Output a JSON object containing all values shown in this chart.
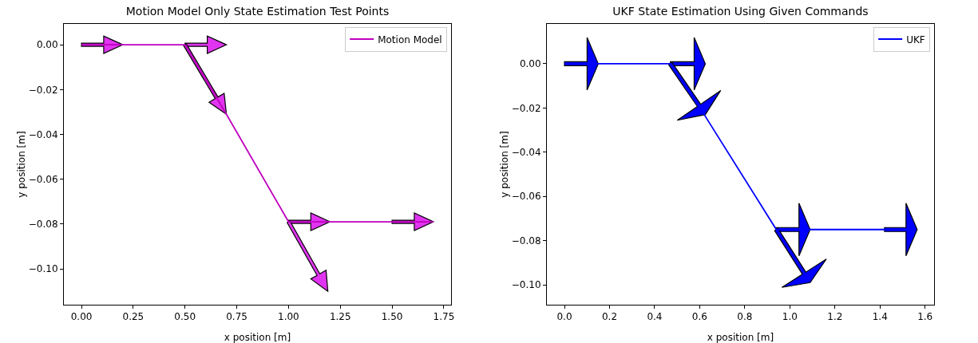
{
  "chart_data": [
    {
      "type": "line",
      "title": "Motion Model Only State Estimation Test Points",
      "xlabel": "x position [m]",
      "ylabel": "y position [m]",
      "xlim": [
        -0.085,
        1.785
      ],
      "xticks": [
        {
          "value": 0,
          "label": "0.00"
        },
        0.25,
        {
          "value": 0.5,
          "label": "0.50"
        },
        0.75,
        {
          "value": 1,
          "label": "1.00"
        },
        1.25,
        {
          "value": 1.5,
          "label": "1.50"
        },
        1.75
      ],
      "ylim": [
        -0.116,
        0.0093
      ],
      "yticks": [
        {
          "value": 0,
          "label": "0.00"
        },
        {
          "value": -0.02,
          "label": "−0.02"
        },
        {
          "value": -0.04,
          "label": "−0.04"
        },
        {
          "value": -0.06,
          "label": "−0.06"
        },
        {
          "value": -0.08,
          "label": "−0.08"
        },
        {
          "value": -0.1,
          "label": "−0.10"
        }
      ],
      "grid": false,
      "legend": "top right",
      "series": [
        {
          "name": "Motion Model",
          "color": "#bf00bf",
          "x": [
            0,
            0.5,
            0.7,
            1.0,
            1.7
          ],
          "values": [
            0,
            0,
            -0.031,
            -0.079,
            -0.079
          ]
        }
      ]
    },
    {
      "type": "line",
      "title": "UKF State Estimation Using Given Commands",
      "xlabel": "x position [m]",
      "ylabel": "y position [m]",
      "xlim": [
        -0.078,
        1.64
      ],
      "xticks": [
        {
          "value": 0,
          "label": "0.0"
        },
        0.2,
        0.4,
        0.6,
        0.8,
        {
          "value": 1,
          "label": "1.0"
        },
        1.2,
        1.4,
        1.6
      ],
      "ylim": [
        -0.109,
        0.018
      ],
      "yticks": [
        {
          "value": 0,
          "label": "0.00"
        },
        {
          "value": -0.02,
          "label": "−0.02"
        },
        {
          "value": -0.04,
          "label": "−0.04"
        },
        {
          "value": -0.06,
          "label": "−0.06"
        },
        {
          "value": -0.08,
          "label": "−0.08"
        },
        {
          "value": -0.1,
          "label": "−0.10"
        }
      ],
      "grid": false,
      "legend": "top right",
      "series": [
        {
          "name": "UKF",
          "color": "#0000ff",
          "x": [
            0,
            0.47,
            0.62,
            0.94,
            1.55
          ],
          "values": [
            0,
            0,
            -0.023,
            -0.075,
            -0.075
          ]
        }
      ]
    }
  ]
}
